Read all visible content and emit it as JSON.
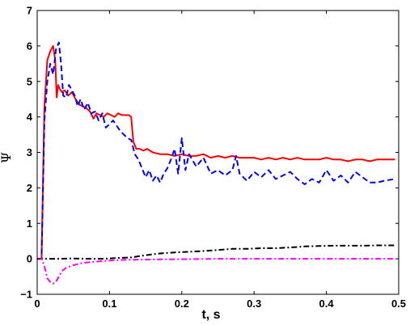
{
  "chart_data": {
    "type": "line",
    "xlabel": "t, s",
    "ylabel": "Ψ",
    "xlim": [
      0,
      0.5
    ],
    "ylim": [
      -1,
      7
    ],
    "xticks": [
      0,
      0.1,
      0.2,
      0.3,
      0.4,
      0.5
    ],
    "xtick_labels": [
      "0",
      "0.1",
      "0.2",
      "0.3",
      "0.4",
      "0.5"
    ],
    "yticks": [
      -1,
      0,
      1,
      2,
      3,
      4,
      5,
      6,
      7
    ],
    "ytick_labels": [
      "−1",
      "0",
      "1",
      "2",
      "3",
      "4",
      "5",
      "6",
      "7"
    ],
    "grid": false,
    "legend": "none",
    "series": [
      {
        "color": "#ff0000",
        "style": "solid",
        "x": [
          0,
          0.006,
          0.01,
          0.014,
          0.018,
          0.022,
          0.025,
          0.027,
          0.029,
          0.031,
          0.034,
          0.038,
          0.043,
          0.048,
          0.053,
          0.058,
          0.063,
          0.068,
          0.073,
          0.078,
          0.082,
          0.087,
          0.092,
          0.097,
          0.102,
          0.107,
          0.112,
          0.117,
          0.122,
          0.127,
          0.13,
          0.133,
          0.137,
          0.142,
          0.147,
          0.152,
          0.16,
          0.17,
          0.18,
          0.19,
          0.2,
          0.21,
          0.22,
          0.23,
          0.24,
          0.25,
          0.26,
          0.27,
          0.28,
          0.29,
          0.3,
          0.31,
          0.32,
          0.33,
          0.34,
          0.35,
          0.36,
          0.37,
          0.38,
          0.39,
          0.4,
          0.41,
          0.42,
          0.43,
          0.44,
          0.45,
          0.46,
          0.47,
          0.48,
          0.495
        ],
        "y": [
          0,
          0,
          4.3,
          5.6,
          5.85,
          6.0,
          5.6,
          4.55,
          4.9,
          4.8,
          4.7,
          4.75,
          4.6,
          4.7,
          4.5,
          4.35,
          4.3,
          4.25,
          4.15,
          3.95,
          4.1,
          4.05,
          4.0,
          4.1,
          4.05,
          4.0,
          4.1,
          4.05,
          4.05,
          4.05,
          4.0,
          3.3,
          3.1,
          3.1,
          3.05,
          3.1,
          3.0,
          2.95,
          2.95,
          2.9,
          2.95,
          2.9,
          2.9,
          2.95,
          2.85,
          2.9,
          2.85,
          2.9,
          2.85,
          2.85,
          2.85,
          2.8,
          2.85,
          2.8,
          2.85,
          2.8,
          2.85,
          2.8,
          2.8,
          2.8,
          2.85,
          2.8,
          2.8,
          2.75,
          2.8,
          2.8,
          2.75,
          2.8,
          2.8,
          2.8
        ]
      },
      {
        "color": "#0000ff",
        "style": "dashed",
        "x": [
          0,
          0.006,
          0.01,
          0.014,
          0.018,
          0.022,
          0.026,
          0.03,
          0.033,
          0.036,
          0.04,
          0.044,
          0.048,
          0.052,
          0.056,
          0.06,
          0.065,
          0.07,
          0.075,
          0.08,
          0.085,
          0.09,
          0.095,
          0.1,
          0.105,
          0.11,
          0.115,
          0.12,
          0.125,
          0.13,
          0.135,
          0.14,
          0.145,
          0.15,
          0.155,
          0.16,
          0.165,
          0.17,
          0.175,
          0.18,
          0.185,
          0.19,
          0.195,
          0.2,
          0.205,
          0.21,
          0.22,
          0.23,
          0.24,
          0.25,
          0.26,
          0.27,
          0.275,
          0.28,
          0.29,
          0.3,
          0.31,
          0.32,
          0.33,
          0.34,
          0.35,
          0.36,
          0.37,
          0.38,
          0.39,
          0.4,
          0.41,
          0.42,
          0.43,
          0.44,
          0.45,
          0.46,
          0.47,
          0.48,
          0.495
        ],
        "y": [
          0,
          0,
          3.9,
          5.0,
          5.5,
          5.2,
          5.9,
          6.1,
          5.5,
          4.6,
          4.55,
          4.9,
          4.75,
          4.6,
          4.3,
          4.5,
          4.2,
          4.4,
          4.1,
          4.15,
          3.9,
          4.1,
          3.7,
          3.8,
          3.9,
          3.75,
          3.6,
          3.5,
          3.4,
          3.35,
          2.95,
          2.8,
          2.55,
          2.3,
          2.5,
          2.2,
          2.35,
          2.15,
          2.4,
          2.55,
          2.8,
          3.1,
          2.4,
          3.4,
          2.5,
          2.95,
          2.6,
          2.85,
          2.4,
          2.5,
          2.35,
          2.5,
          2.9,
          2.4,
          2.2,
          2.45,
          2.3,
          2.5,
          2.25,
          2.35,
          2.45,
          2.25,
          2.1,
          2.25,
          2.15,
          2.5,
          2.2,
          2.35,
          2.15,
          2.45,
          2.3,
          2.15,
          2.15,
          2.2,
          2.25
        ]
      },
      {
        "color": "#000000",
        "style": "dashdot",
        "x": [
          0,
          0.006,
          0.01,
          0.03,
          0.05,
          0.07,
          0.09,
          0.11,
          0.13,
          0.15,
          0.17,
          0.19,
          0.21,
          0.23,
          0.25,
          0.27,
          0.29,
          0.31,
          0.33,
          0.35,
          0.37,
          0.39,
          0.41,
          0.43,
          0.45,
          0.47,
          0.495
        ],
        "y": [
          0,
          0,
          0.0,
          0.0,
          0.01,
          0.0,
          0.0,
          0.02,
          0.04,
          0.1,
          0.15,
          0.18,
          0.2,
          0.22,
          0.25,
          0.28,
          0.28,
          0.3,
          0.3,
          0.32,
          0.35,
          0.36,
          0.37,
          0.37,
          0.37,
          0.38,
          0.38
        ]
      },
      {
        "color": "#ff00ff",
        "style": "dashdot",
        "x": [
          0,
          0.006,
          0.01,
          0.014,
          0.018,
          0.022,
          0.026,
          0.03,
          0.034,
          0.04,
          0.05,
          0.06,
          0.07,
          0.08,
          0.1,
          0.12,
          0.15,
          0.2,
          0.25,
          0.3,
          0.35,
          0.4,
          0.45,
          0.495
        ],
        "y": [
          0,
          0,
          -0.2,
          -0.55,
          -0.65,
          -0.7,
          -0.65,
          -0.5,
          -0.35,
          -0.25,
          -0.18,
          -0.13,
          -0.1,
          -0.08,
          -0.05,
          -0.03,
          -0.02,
          -0.01,
          0,
          0,
          0,
          0,
          0,
          0
        ]
      }
    ]
  }
}
